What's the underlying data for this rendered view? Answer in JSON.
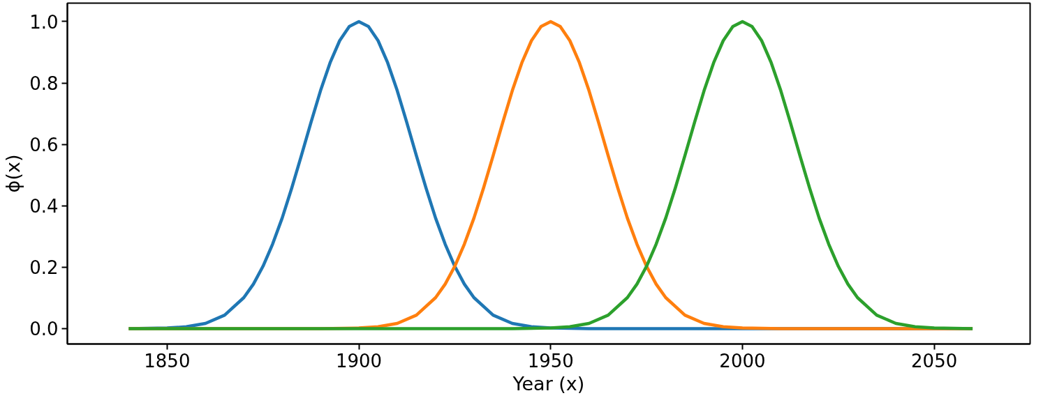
{
  "chart_data": {
    "type": "line",
    "xlabel": "Year (x)",
    "ylabel": "ϕ(x)",
    "xlim": [
      1824,
      2075
    ],
    "ylim": [
      -0.05,
      1.06
    ],
    "xticks": [
      1850,
      1900,
      1950,
      2000,
      2050
    ],
    "yticks": [
      {
        "value": 0,
        "label": "0.0"
      },
      {
        "value": 0.2,
        "label": "0.2"
      },
      {
        "value": 0.4,
        "label": "0.4"
      },
      {
        "value": 0.6,
        "label": "0.6"
      },
      {
        "value": 0.8,
        "label": "0.8"
      },
      {
        "value": 1,
        "label": "1.0"
      }
    ],
    "grid": false,
    "marker": "none",
    "line_style": "solid",
    "series": [
      {
        "color": "#1f77b4",
        "x": [
          1840,
          1850,
          1855,
          1860,
          1865,
          1870,
          1872.5,
          1875,
          1877.5,
          1880,
          1882.5,
          1885,
          1887.5,
          1890,
          1892.5,
          1895,
          1897.5,
          1900,
          1902.5,
          1905,
          1907.5,
          1910,
          1912.5,
          1915,
          1917.5,
          1920,
          1922.5,
          1925,
          1927.5,
          1930,
          1935,
          1940,
          1945,
          1950,
          1960,
          2060
        ],
        "values": [
          0,
          0.002,
          0.006,
          0.017,
          0.044,
          0.101,
          0.145,
          0.203,
          0.275,
          0.36,
          0.458,
          0.563,
          0.671,
          0.775,
          0.866,
          0.938,
          0.984,
          1,
          0.984,
          0.938,
          0.866,
          0.775,
          0.671,
          0.563,
          0.458,
          0.36,
          0.275,
          0.203,
          0.145,
          0.101,
          0.044,
          0.017,
          0.006,
          0.002,
          0,
          0
        ]
      },
      {
        "color": "#ff7f0e",
        "x": [
          1840,
          1890,
          1900,
          1905,
          1910,
          1915,
          1920,
          1922.5,
          1925,
          1927.5,
          1930,
          1932.5,
          1935,
          1937.5,
          1940,
          1942.5,
          1945,
          1947.5,
          1950,
          1952.5,
          1955,
          1957.5,
          1960,
          1962.5,
          1965,
          1967.5,
          1970,
          1972.5,
          1975,
          1977.5,
          1980,
          1985,
          1990,
          1995,
          2000,
          2010,
          2060
        ],
        "values": [
          0,
          0,
          0.002,
          0.006,
          0.017,
          0.044,
          0.101,
          0.145,
          0.203,
          0.275,
          0.36,
          0.458,
          0.563,
          0.671,
          0.775,
          0.866,
          0.938,
          0.984,
          1,
          0.984,
          0.938,
          0.866,
          0.775,
          0.671,
          0.563,
          0.458,
          0.36,
          0.275,
          0.203,
          0.145,
          0.101,
          0.044,
          0.017,
          0.006,
          0.002,
          0,
          0
        ]
      },
      {
        "color": "#2ca02c",
        "x": [
          1840,
          1940,
          1950,
          1955,
          1960,
          1965,
          1970,
          1972.5,
          1975,
          1977.5,
          1980,
          1982.5,
          1985,
          1987.5,
          1990,
          1992.5,
          1995,
          1997.5,
          2000,
          2002.5,
          2005,
          2007.5,
          2010,
          2012.5,
          2015,
          2017.5,
          2020,
          2022.5,
          2025,
          2027.5,
          2030,
          2035,
          2040,
          2045,
          2050,
          2060
        ],
        "values": [
          0,
          0,
          0.002,
          0.006,
          0.017,
          0.044,
          0.101,
          0.145,
          0.203,
          0.275,
          0.36,
          0.458,
          0.563,
          0.671,
          0.775,
          0.866,
          0.938,
          0.984,
          1,
          0.984,
          0.938,
          0.866,
          0.775,
          0.671,
          0.563,
          0.458,
          0.36,
          0.275,
          0.203,
          0.145,
          0.101,
          0.044,
          0.017,
          0.006,
          0.002,
          0
        ]
      }
    ]
  }
}
